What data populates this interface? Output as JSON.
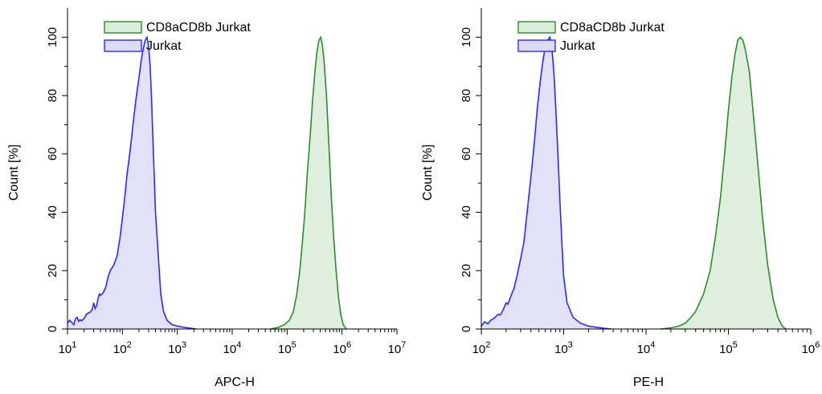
{
  "chart_data": [
    {
      "type": "area",
      "xlabel": "APC-H",
      "ylabel": "Count [%]",
      "xscale": "log",
      "xlim": [
        10,
        10000000
      ],
      "ylim": [
        0,
        110
      ],
      "x_tick_labels": [
        {
          "base": "10",
          "exp": "1"
        },
        {
          "base": "10",
          "exp": "2"
        },
        {
          "base": "10",
          "exp": "3"
        },
        {
          "base": "10",
          "exp": "4"
        },
        {
          "base": "10",
          "exp": "5"
        },
        {
          "base": "10",
          "exp": "6"
        },
        {
          "base": "10",
          "exp": "7"
        }
      ],
      "y_ticks": [
        "0",
        "20",
        "40",
        "60",
        "80",
        "100"
      ],
      "legend_position": "top-left",
      "series": [
        {
          "name": "CD8aCD8b Jurkat",
          "color": "#2e8b2e",
          "fill": "#d8ecd8",
          "points": [
            [
              50000,
              0
            ],
            [
              70000,
              0.6
            ],
            [
              90000,
              1.5
            ],
            [
              110000,
              3
            ],
            [
              130000,
              6
            ],
            [
              150000,
              12
            ],
            [
              170000,
              20
            ],
            [
              190000,
              30
            ],
            [
              210000,
              40
            ],
            [
              230000,
              52
            ],
            [
              260000,
              65
            ],
            [
              290000,
              78
            ],
            [
              320000,
              88
            ],
            [
              350000,
              95
            ],
            [
              380000,
              99
            ],
            [
              410000,
              100
            ],
            [
              440000,
              97
            ],
            [
              470000,
              92
            ],
            [
              520000,
              80
            ],
            [
              580000,
              62
            ],
            [
              640000,
              45
            ],
            [
              700000,
              32
            ],
            [
              780000,
              20
            ],
            [
              860000,
              11
            ],
            [
              950000,
              5
            ],
            [
              1050000,
              1.5
            ],
            [
              1200000,
              0
            ]
          ]
        },
        {
          "name": "Jurkat",
          "color": "#2a2aff",
          "fill": "#dcdcf7",
          "points": [
            [
              10,
              2
            ],
            [
              11,
              3
            ],
            [
              12,
              2.2
            ],
            [
              13,
              1.5
            ],
            [
              14,
              3.5
            ],
            [
              15,
              4
            ],
            [
              16,
              2.6
            ],
            [
              17,
              3.2
            ],
            [
              18,
              2.8
            ],
            [
              20,
              3.6
            ],
            [
              22,
              5
            ],
            [
              24,
              5.5
            ],
            [
              26,
              5.8
            ],
            [
              28,
              6.5
            ],
            [
              30,
              9
            ],
            [
              32,
              7
            ],
            [
              34,
              8
            ],
            [
              36,
              10.5
            ],
            [
              38,
              12
            ],
            [
              40,
              11.5
            ],
            [
              45,
              12.5
            ],
            [
              50,
              14.5
            ],
            [
              55,
              18
            ],
            [
              60,
              20
            ],
            [
              70,
              22
            ],
            [
              80,
              25
            ],
            [
              90,
              31
            ],
            [
              100,
              38
            ],
            [
              110,
              45
            ],
            [
              120,
              52
            ],
            [
              140,
              62
            ],
            [
              160,
              72
            ],
            [
              180,
              80
            ],
            [
              200,
              86
            ],
            [
              220,
              92
            ],
            [
              240,
              96
            ],
            [
              260,
              99
            ],
            [
              280,
              100
            ],
            [
              300,
              97
            ],
            [
              320,
              90
            ],
            [
              340,
              78
            ],
            [
              360,
              65
            ],
            [
              380,
              52
            ],
            [
              400,
              40
            ],
            [
              450,
              25
            ],
            [
              500,
              12
            ],
            [
              560,
              6
            ],
            [
              650,
              3
            ],
            [
              800,
              1.5
            ],
            [
              1000,
              1
            ],
            [
              1300,
              0.6
            ],
            [
              1700,
              0.3
            ],
            [
              2200,
              0
            ]
          ]
        }
      ]
    },
    {
      "type": "area",
      "xlabel": "PE-H",
      "ylabel": "Count [%]",
      "xscale": "log",
      "xlim": [
        100,
        1000000
      ],
      "ylim": [
        0,
        110
      ],
      "x_tick_labels": [
        {
          "base": "10",
          "exp": "2"
        },
        {
          "base": "10",
          "exp": "3"
        },
        {
          "base": "10",
          "exp": "4"
        },
        {
          "base": "10",
          "exp": "5"
        },
        {
          "base": "10",
          "exp": "6"
        }
      ],
      "y_ticks": [
        "0",
        "20",
        "40",
        "60",
        "80",
        "100"
      ],
      "legend_position": "top-left",
      "series": [
        {
          "name": "CD8aCD8b Jurkat",
          "color": "#2e8b2e",
          "fill": "#d8ecd8",
          "points": [
            [
              15000,
              0
            ],
            [
              20000,
              0.4
            ],
            [
              25000,
              1
            ],
            [
              30000,
              2
            ],
            [
              35000,
              4
            ],
            [
              40000,
              6
            ],
            [
              50000,
              12
            ],
            [
              60000,
              20
            ],
            [
              70000,
              32
            ],
            [
              80000,
              45
            ],
            [
              90000,
              60
            ],
            [
              100000,
              75
            ],
            [
              110000,
              86
            ],
            [
              120000,
              94
            ],
            [
              130000,
              99
            ],
            [
              140000,
              100
            ],
            [
              150000,
              99
            ],
            [
              160000,
              96
            ],
            [
              180000,
              88
            ],
            [
              200000,
              74
            ],
            [
              230000,
              55
            ],
            [
              260000,
              38
            ],
            [
              300000,
              22
            ],
            [
              350000,
              10
            ],
            [
              400000,
              4
            ],
            [
              450000,
              1
            ],
            [
              500000,
              0
            ]
          ]
        },
        {
          "name": "Jurkat",
          "color": "#2a2aff",
          "fill": "#dcdcf7",
          "points": [
            [
              100,
              1
            ],
            [
              110,
              2.5
            ],
            [
              120,
              1.8
            ],
            [
              130,
              3
            ],
            [
              140,
              3.5
            ],
            [
              150,
              4.2
            ],
            [
              160,
              5
            ],
            [
              170,
              4.8
            ],
            [
              180,
              6
            ],
            [
              190,
              7.5
            ],
            [
              200,
              9
            ],
            [
              210,
              8.5
            ],
            [
              230,
              11.5
            ],
            [
              250,
              14
            ],
            [
              270,
              18
            ],
            [
              300,
              24
            ],
            [
              330,
              30
            ],
            [
              360,
              40
            ],
            [
              400,
              52
            ],
            [
              440,
              64
            ],
            [
              480,
              76
            ],
            [
              520,
              85
            ],
            [
              560,
              92
            ],
            [
              600,
              97
            ],
            [
              640,
              99
            ],
            [
              680,
              100
            ],
            [
              720,
              96
            ],
            [
              760,
              88
            ],
            [
              800,
              76
            ],
            [
              850,
              60
            ],
            [
              900,
              44
            ],
            [
              950,
              30
            ],
            [
              1000,
              18
            ],
            [
              1100,
              9
            ],
            [
              1300,
              4
            ],
            [
              1600,
              2
            ],
            [
              2000,
              1
            ],
            [
              2500,
              0.6
            ],
            [
              3000,
              0.3
            ],
            [
              3800,
              0
            ]
          ]
        }
      ]
    }
  ]
}
